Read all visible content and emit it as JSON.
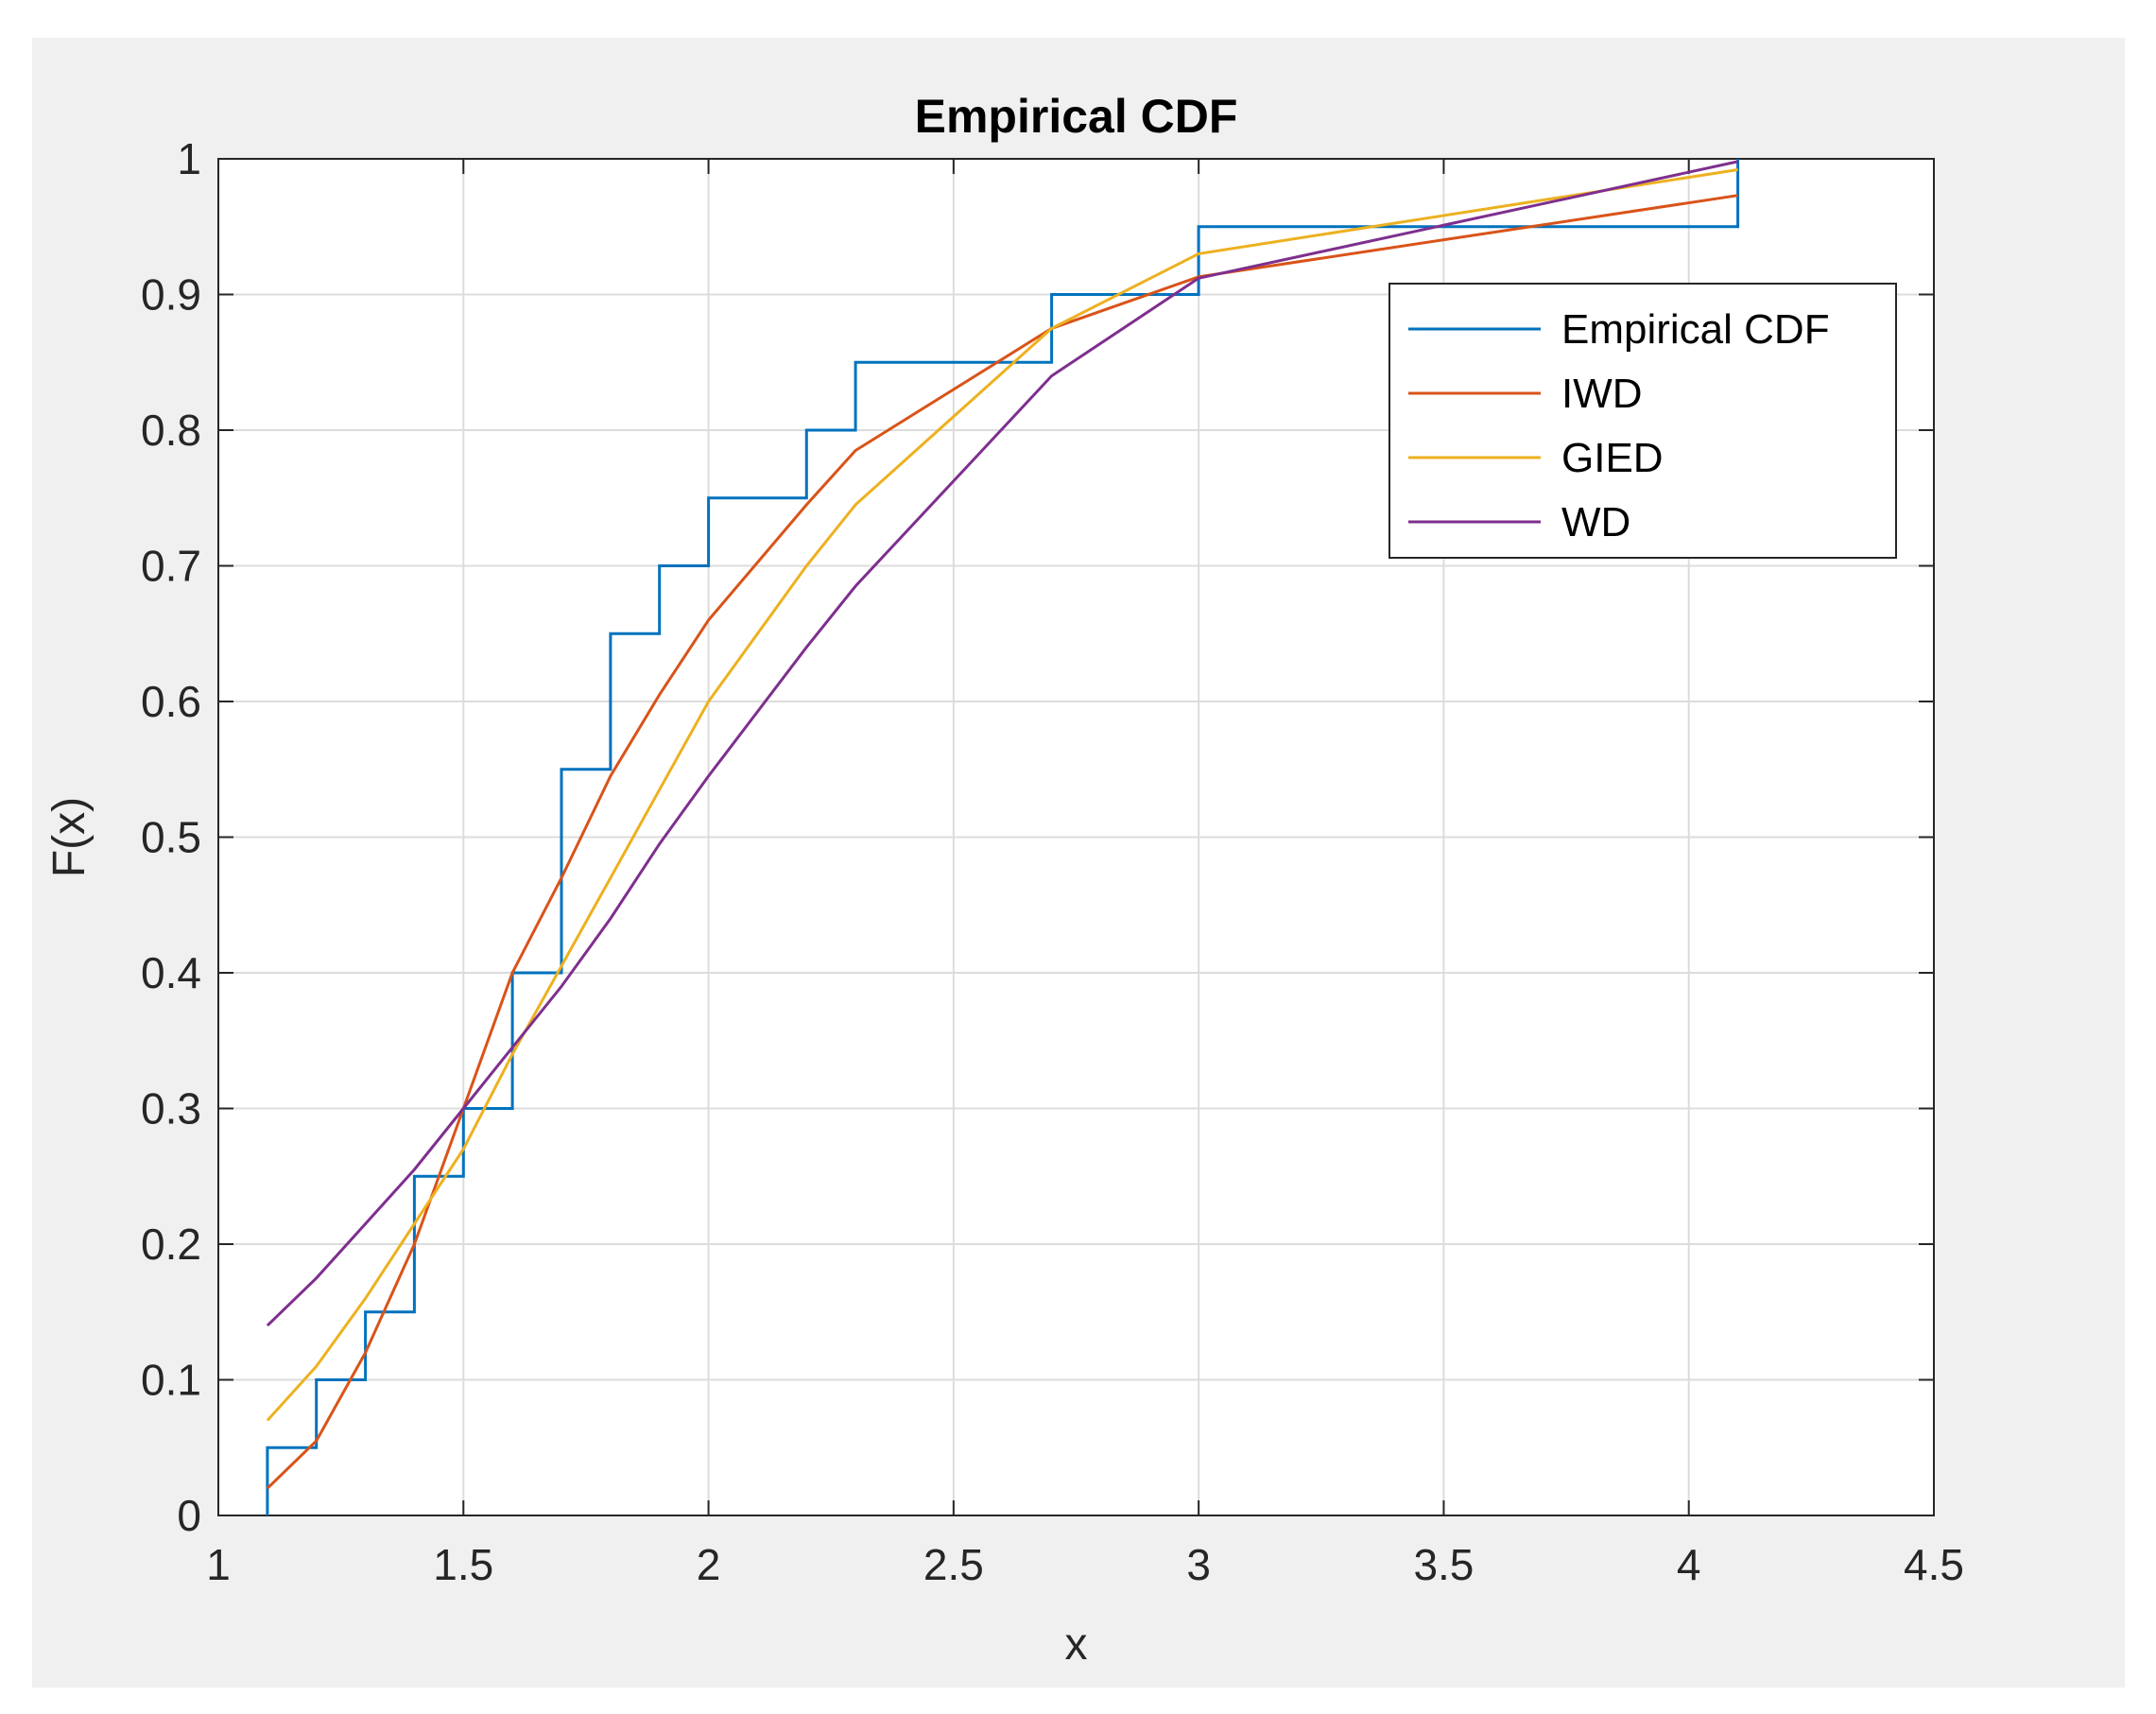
{
  "chart_data": {
    "type": "line",
    "title": "Empirical CDF",
    "xlabel": "x",
    "ylabel": "F(x)",
    "xlim": [
      1,
      4.5
    ],
    "ylim": [
      0,
      1
    ],
    "grid": true,
    "legend_position": "top-right",
    "x_ticks": [
      "1",
      "1.5",
      "2",
      "2.5",
      "3",
      "3.5",
      "4",
      "4.5"
    ],
    "x_tick_values": [
      1,
      1.5,
      2,
      2.5,
      3,
      3.5,
      4,
      4.5
    ],
    "y_ticks": [
      "0",
      "0.1",
      "0.2",
      "0.3",
      "0.4",
      "0.5",
      "0.6",
      "0.7",
      "0.8",
      "0.9",
      "1"
    ],
    "y_tick_values": [
      0,
      0.1,
      0.2,
      0.3,
      0.4,
      0.5,
      0.6,
      0.7,
      0.8,
      0.9,
      1
    ],
    "series": [
      {
        "name": "Empirical CDF",
        "kind": "step",
        "color": "#0072bd",
        "x": [
          1.1,
          1.2,
          1.3,
          1.4,
          1.5,
          1.6,
          1.7,
          1.8,
          1.9,
          2.0,
          2.2,
          2.3,
          2.7,
          3.0,
          4.1
        ],
        "y": [
          0.05,
          0.1,
          0.15,
          0.25,
          0.3,
          0.4,
          0.55,
          0.65,
          0.7,
          0.75,
          0.8,
          0.85,
          0.9,
          0.95,
          1.0
        ]
      },
      {
        "name": "IWD",
        "kind": "line",
        "color": "#d95319",
        "x": [
          1.1,
          1.2,
          1.3,
          1.4,
          1.5,
          1.6,
          1.7,
          1.8,
          1.9,
          2.0,
          2.2,
          2.3,
          2.7,
          3.0,
          4.1
        ],
        "y": [
          0.02,
          0.055,
          0.12,
          0.2,
          0.3,
          0.4,
          0.47,
          0.545,
          0.605,
          0.66,
          0.745,
          0.785,
          0.875,
          0.913,
          0.973
        ]
      },
      {
        "name": "GIED",
        "kind": "line",
        "color": "#edb120",
        "x": [
          1.1,
          1.2,
          1.3,
          1.4,
          1.5,
          1.6,
          1.7,
          1.8,
          1.9,
          2.0,
          2.2,
          2.3,
          2.7,
          3.0,
          4.1
        ],
        "y": [
          0.07,
          0.11,
          0.16,
          0.215,
          0.27,
          0.34,
          0.405,
          0.47,
          0.535,
          0.6,
          0.7,
          0.745,
          0.875,
          0.93,
          0.992
        ]
      },
      {
        "name": "WD",
        "kind": "line",
        "color": "#7e2f8e",
        "x": [
          1.1,
          1.2,
          1.3,
          1.4,
          1.5,
          1.6,
          1.7,
          1.8,
          1.9,
          2.0,
          2.2,
          2.3,
          2.7,
          3.0,
          4.1
        ],
        "y": [
          0.14,
          0.175,
          0.215,
          0.255,
          0.3,
          0.345,
          0.39,
          0.44,
          0.495,
          0.545,
          0.64,
          0.685,
          0.84,
          0.912,
          0.998
        ]
      }
    ]
  }
}
